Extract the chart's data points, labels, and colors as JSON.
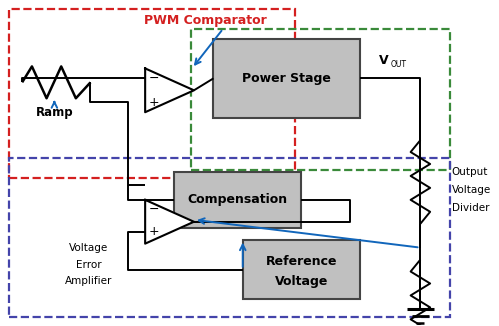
{
  "fig_width": 4.99,
  "fig_height": 3.26,
  "dpi": 100,
  "bg_color": "#ffffff",
  "border_red": "#d42020",
  "border_green": "#3a8a3a",
  "border_blue": "#4444aa",
  "line_color": "#000000",
  "arrow_color": "#1166bb",
  "text_pwm": "PWM Comparator",
  "text_ramp": "Ramp",
  "text_power": "Power Stage",
  "text_vout": "V",
  "text_vout_sub": "OUT",
  "text_comp": "Compensation",
  "text_out_div1": "Output",
  "text_out_div2": "Voltage",
  "text_out_div3": "Divider",
  "text_vea1": "Voltage",
  "text_vea2": "Error",
  "text_vea3": "Amplifier",
  "text_ref1": "Reference",
  "text_ref2": "Voltage"
}
